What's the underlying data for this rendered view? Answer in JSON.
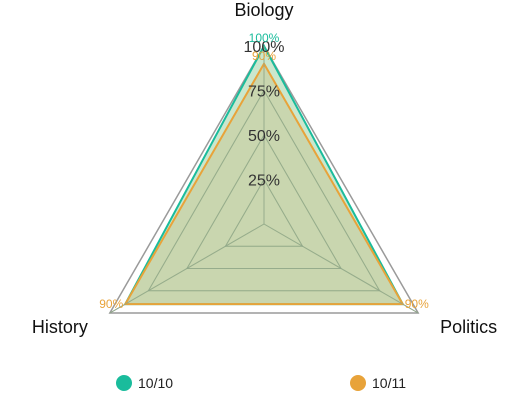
{
  "chart_data": {
    "type": "radar",
    "axes": [
      "Biology",
      "Politics",
      "History"
    ],
    "r_ticks": [
      "25%",
      "50%",
      "75%",
      "100%"
    ],
    "r_range": [
      0,
      100
    ],
    "series": [
      {
        "name": "10/10",
        "values": [
          100,
          90,
          90
        ],
        "value_labels": [
          "100%",
          "",
          ""
        ],
        "color": "#1abc9c",
        "fill": "#9fd3a6"
      },
      {
        "name": "10/11",
        "values": [
          90,
          90,
          90
        ],
        "value_labels": [
          "90%",
          "90%",
          "90%"
        ],
        "color": "#e8a33a",
        "fill": "#c8c896"
      }
    ],
    "legend_position": "bottom",
    "grid": true
  },
  "colors": {
    "outer_frame": "#9a9a9a",
    "grid": "#8fa68a",
    "area_fill": "#bccc9a"
  }
}
